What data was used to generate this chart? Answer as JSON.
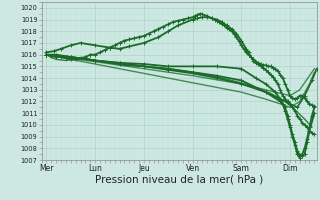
{
  "bg_color": "#cce8e0",
  "grid_major_color": "#aacccc",
  "grid_minor_color": "#bbdddd",
  "line_color": "#1a6b2a",
  "xlabel": "Pression niveau de la mer( hPa )",
  "xlabel_fontsize": 7.5,
  "ylim": [
    1007,
    1020.5
  ],
  "yticks": [
    1007,
    1008,
    1009,
    1010,
    1011,
    1012,
    1013,
    1014,
    1015,
    1016,
    1017,
    1018,
    1019,
    1020
  ],
  "xtick_labels": [
    "Mer",
    "Lun",
    "Jeu",
    "Ven",
    "Sam",
    "Dim"
  ],
  "xtick_positions": [
    0,
    1,
    2,
    3,
    4,
    5
  ],
  "xlim": [
    -0.1,
    5.55
  ],
  "series": [
    {
      "x": [
        0.0,
        0.08,
        0.2,
        0.4,
        0.6,
        0.8,
        1.0,
        1.3,
        1.6,
        2.0,
        2.5,
        3.0,
        3.5,
        4.0,
        4.3,
        4.6,
        4.9,
        5.1,
        5.3,
        5.45
      ],
      "y": [
        1016.0,
        1015.8,
        1015.6,
        1015.5,
        1015.6,
        1015.7,
        1015.5,
        1015.3,
        1015.1,
        1015.0,
        1014.8,
        1014.5,
        1014.1,
        1013.6,
        1013.2,
        1012.7,
        1012.0,
        1011.3,
        1010.5,
        1009.8
      ],
      "marker": false,
      "linewidth": 1.0,
      "alpha": 0.85
    },
    {
      "x": [
        0.0,
        1.0,
        2.0,
        3.0,
        4.0,
        4.7,
        5.0,
        5.2,
        5.4,
        5.5
      ],
      "y": [
        1016.0,
        1015.4,
        1014.8,
        1014.2,
        1013.5,
        1012.8,
        1012.5,
        1013.0,
        1014.2,
        1014.8
      ],
      "marker": false,
      "linewidth": 1.0,
      "alpha": 0.75
    },
    {
      "x": [
        0.0,
        1.0,
        2.0,
        3.0,
        4.0,
        4.5,
        4.8,
        5.0,
        5.2,
        5.4,
        5.5
      ],
      "y": [
        1016.0,
        1015.2,
        1014.4,
        1013.6,
        1012.8,
        1012.2,
        1011.8,
        1011.5,
        1012.0,
        1013.5,
        1014.5
      ],
      "marker": false,
      "linewidth": 1.0,
      "alpha": 0.75
    },
    {
      "x": [
        0.0,
        0.5,
        1.0,
        1.5,
        2.0,
        2.5,
        3.0,
        3.5,
        4.0,
        4.5,
        4.8,
        5.0,
        5.15,
        5.3,
        5.45,
        5.55
      ],
      "y": [
        1016.0,
        1015.8,
        1015.5,
        1015.3,
        1015.0,
        1014.7,
        1014.4,
        1014.0,
        1013.5,
        1012.8,
        1012.2,
        1011.8,
        1011.5,
        1012.5,
        1013.8,
        1014.8
      ],
      "marker": true,
      "linewidth": 1.2,
      "alpha": 1.0
    },
    {
      "x": [
        0.0,
        0.1,
        0.2,
        0.3,
        0.4,
        0.5,
        0.6,
        0.7,
        0.8,
        0.9,
        1.0,
        1.1,
        1.2,
        1.3,
        1.4,
        1.5,
        1.6,
        1.7,
        1.8,
        1.9,
        2.0,
        2.1,
        2.2,
        2.3,
        2.4,
        2.5,
        2.6,
        2.7,
        2.8,
        2.9,
        3.0,
        3.05,
        3.1,
        3.15,
        3.2,
        3.3,
        3.4,
        3.45,
        3.5,
        3.55,
        3.6,
        3.65,
        3.7,
        3.75,
        3.8,
        3.85,
        3.9,
        3.95,
        4.0,
        4.05,
        4.1,
        4.15,
        4.2,
        4.25,
        4.3,
        4.35,
        4.4,
        4.45,
        4.5,
        4.55,
        4.6,
        4.65,
        4.7,
        4.75,
        4.8,
        4.85,
        4.9,
        4.95,
        5.0,
        5.05,
        5.1,
        5.15,
        5.2,
        5.25,
        5.3,
        5.35,
        5.4,
        5.45,
        5.5
      ],
      "y": [
        1016.0,
        1015.9,
        1015.8,
        1015.8,
        1015.7,
        1015.6,
        1015.6,
        1015.7,
        1015.8,
        1016.0,
        1016.0,
        1016.2,
        1016.4,
        1016.6,
        1016.8,
        1017.0,
        1017.2,
        1017.3,
        1017.4,
        1017.5,
        1017.6,
        1017.8,
        1018.0,
        1018.2,
        1018.4,
        1018.6,
        1018.8,
        1018.9,
        1019.0,
        1019.1,
        1019.2,
        1019.3,
        1019.4,
        1019.5,
        1019.45,
        1019.3,
        1019.1,
        1019.0,
        1018.9,
        1018.8,
        1018.6,
        1018.5,
        1018.3,
        1018.2,
        1018.0,
        1017.8,
        1017.5,
        1017.2,
        1016.8,
        1016.5,
        1016.2,
        1016.0,
        1015.8,
        1015.6,
        1015.4,
        1015.3,
        1015.2,
        1015.1,
        1015.1,
        1015.0,
        1015.0,
        1014.9,
        1014.8,
        1014.6,
        1014.3,
        1014.0,
        1013.5,
        1013.0,
        1012.5,
        1012.3,
        1012.2,
        1012.3,
        1012.5,
        1012.5,
        1012.3,
        1012.0,
        1011.8,
        1011.7,
        1011.6
      ],
      "marker": true,
      "linewidth": 1.3,
      "alpha": 1.0
    },
    {
      "x": [
        0.0,
        0.15,
        0.3,
        0.5,
        0.7,
        1.0,
        1.3,
        1.5,
        1.7,
        2.0,
        2.3,
        2.5,
        2.7,
        3.0,
        3.1,
        3.2,
        3.3,
        3.4,
        3.5,
        3.6,
        3.7,
        3.8,
        3.9,
        4.0,
        4.1,
        4.15,
        4.2,
        4.25,
        4.3,
        4.35,
        4.4,
        4.45,
        4.5,
        4.55,
        4.6,
        4.65,
        4.7,
        4.75,
        4.8,
        4.85,
        4.9,
        4.95,
        5.0,
        5.05,
        5.1,
        5.15,
        5.2,
        5.25,
        5.3,
        5.35,
        5.4,
        5.45,
        5.5
      ],
      "y": [
        1016.2,
        1016.3,
        1016.5,
        1016.8,
        1017.0,
        1016.8,
        1016.6,
        1016.5,
        1016.7,
        1017.0,
        1017.5,
        1018.0,
        1018.5,
        1019.0,
        1019.1,
        1019.2,
        1019.2,
        1019.1,
        1019.0,
        1018.8,
        1018.5,
        1018.2,
        1017.8,
        1017.2,
        1016.5,
        1016.2,
        1015.8,
        1015.5,
        1015.3,
        1015.2,
        1015.0,
        1014.9,
        1014.7,
        1014.5,
        1014.3,
        1014.1,
        1013.8,
        1013.5,
        1013.0,
        1012.5,
        1012.2,
        1012.0,
        1011.8,
        1011.5,
        1011.2,
        1010.8,
        1010.5,
        1010.2,
        1010.0,
        1009.8,
        1009.5,
        1009.3,
        1009.2
      ],
      "marker": true,
      "linewidth": 1.3,
      "alpha": 1.0
    },
    {
      "x": [
        0.0,
        0.2,
        0.5,
        1.0,
        1.5,
        2.0,
        2.5,
        3.0,
        3.5,
        4.0,
        4.3,
        4.5,
        4.7,
        4.8,
        4.85,
        4.9,
        4.95,
        5.0,
        5.05,
        5.1,
        5.15,
        5.2,
        5.25,
        5.3,
        5.35,
        5.4,
        5.45,
        5.5
      ],
      "y": [
        1016.0,
        1016.0,
        1015.8,
        1015.5,
        1015.3,
        1015.2,
        1015.0,
        1015.0,
        1015.0,
        1014.8,
        1014.0,
        1013.5,
        1012.8,
        1012.2,
        1011.8,
        1011.2,
        1010.5,
        1009.8,
        1009.0,
        1008.3,
        1007.5,
        1007.2,
        1007.5,
        1008.0,
        1008.8,
        1009.8,
        1010.8,
        1011.5
      ],
      "marker": true,
      "linewidth": 1.3,
      "alpha": 1.0
    },
    {
      "x": [
        0.0,
        0.5,
        1.0,
        1.5,
        2.0,
        2.5,
        3.0,
        3.5,
        4.0,
        4.5,
        4.8,
        4.9,
        4.95,
        5.0,
        5.05,
        5.1,
        5.15,
        5.2,
        5.25,
        5.3,
        5.35,
        5.4,
        5.5
      ],
      "y": [
        1016.0,
        1015.8,
        1015.5,
        1015.2,
        1015.0,
        1014.8,
        1014.5,
        1014.2,
        1013.8,
        1012.8,
        1012.0,
        1011.5,
        1010.8,
        1010.0,
        1009.2,
        1008.5,
        1007.8,
        1007.4,
        1007.3,
        1007.5,
        1008.5,
        1009.5,
        1011.0
      ],
      "marker": true,
      "linewidth": 1.3,
      "alpha": 1.0
    }
  ]
}
